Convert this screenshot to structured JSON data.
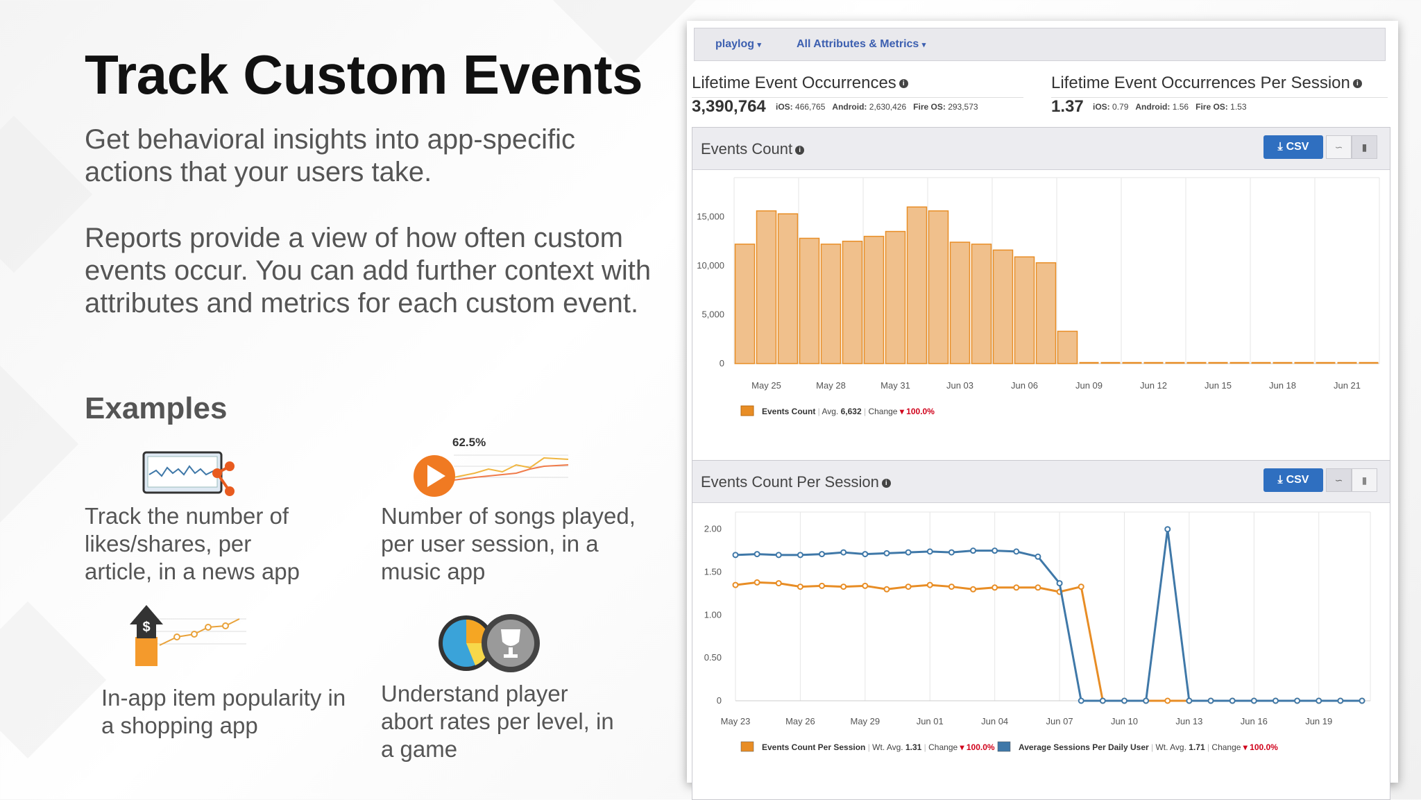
{
  "slide": {
    "title": "Track Custom Events",
    "para1": "Get behavioral insights into app-specific actions that your users take.",
    "para2": "Reports provide a view of how often custom events occur. You can add further context with attributes and metrics for each custom event.",
    "examples_heading": "Examples",
    "examples": [
      {
        "text": "Track the number of likes/shares, per article, in a news app",
        "icon": "news-chart-share-icon"
      },
      {
        "text": "Number of songs played, per user session, in a music app",
        "icon": "music-play-chart-icon",
        "icon_label": "62.5%"
      },
      {
        "text": "In-app item popularity in a shopping app",
        "icon": "dollar-arrow-chart-icon"
      },
      {
        "text": "Understand player abort rates per level, in a game",
        "icon": "pie-trophy-icon"
      }
    ]
  },
  "panel": {
    "nav": {
      "app": "playlog",
      "attributes": "All Attributes & Metrics"
    },
    "stats": [
      {
        "title": "Lifetime Event Occurrences",
        "big": "3,390,764",
        "breakdown": [
          {
            "k": "iOS:",
            "v": "466,765"
          },
          {
            "k": "Android:",
            "v": "2,630,426"
          },
          {
            "k": "Fire OS:",
            "v": "293,573"
          }
        ]
      },
      {
        "title": "Lifetime Event Occurrences Per Session",
        "big": "1.37",
        "breakdown": [
          {
            "k": "iOS:",
            "v": "0.79"
          },
          {
            "k": "Android:",
            "v": "1.56"
          },
          {
            "k": "Fire OS:",
            "v": "1.53"
          }
        ]
      }
    ],
    "csv_label": "CSV"
  },
  "colors": {
    "orange": "#e88d25",
    "orange_fill": "#f0c08c",
    "blue": "#3f78a8",
    "accent": "#2f6fc0",
    "red": "#d0021b"
  },
  "chart_data": [
    {
      "type": "bar",
      "title": "Events Count",
      "categories": [
        "May 24",
        "May 25",
        "May 26",
        "May 27",
        "May 28",
        "May 29",
        "May 30",
        "May 31",
        "Jun 01",
        "Jun 02",
        "Jun 03",
        "Jun 04",
        "Jun 05",
        "Jun 06",
        "Jun 07",
        "Jun 08",
        "Jun 09",
        "Jun 10",
        "Jun 11",
        "Jun 12",
        "Jun 13",
        "Jun 14",
        "Jun 15",
        "Jun 16",
        "Jun 17",
        "Jun 18",
        "Jun 19",
        "Jun 20",
        "Jun 21",
        "Jun 22"
      ],
      "values": [
        12200,
        15600,
        15300,
        12800,
        12200,
        12500,
        13000,
        13500,
        16000,
        15600,
        12400,
        12200,
        11600,
        10900,
        10300,
        3300,
        0,
        0,
        0,
        0,
        0,
        0,
        0,
        0,
        0,
        0,
        0,
        0,
        0,
        0
      ],
      "tick_labels": [
        "May 25",
        "May 28",
        "May 31",
        "Jun 03",
        "Jun 06",
        "Jun 09",
        "Jun 12",
        "Jun 15",
        "Jun 18",
        "Jun 21"
      ],
      "tick_start": 1,
      "tick_step": 3,
      "yticks": [
        "0",
        "5,000",
        "10,000",
        "15,000"
      ],
      "ylim": [
        0,
        19000
      ],
      "legend": [
        {
          "name": "Events Count",
          "avg_label": "Avg.",
          "avg": "6,632",
          "change_label": "Change",
          "change": "100.0%"
        }
      ]
    },
    {
      "type": "line",
      "title": "Events Count Per Session",
      "categories": [
        "May 23",
        "May 24",
        "May 25",
        "May 26",
        "May 27",
        "May 28",
        "May 29",
        "May 30",
        "May 31",
        "Jun 01",
        "Jun 02",
        "Jun 03",
        "Jun 04",
        "Jun 05",
        "Jun 06",
        "Jun 07",
        "Jun 08",
        "Jun 09",
        "Jun 10",
        "Jun 11",
        "Jun 12",
        "Jun 13",
        "Jun 14",
        "Jun 15",
        "Jun 16",
        "Jun 17",
        "Jun 18",
        "Jun 19",
        "Jun 20",
        "Jun 21"
      ],
      "tick_labels": [
        "May 23",
        "May 26",
        "May 29",
        "Jun 01",
        "Jun 04",
        "Jun 07",
        "Jun 10",
        "Jun 13",
        "Jun 16",
        "Jun 19"
      ],
      "tick_start": 0,
      "tick_step": 3,
      "yticks": [
        "0",
        "0.50",
        "1.00",
        "1.50",
        "2.00"
      ],
      "ylim": [
        0,
        2.2
      ],
      "series": [
        {
          "name": "Events Count Per Session",
          "color": "#e88d25",
          "values": [
            1.35,
            1.38,
            1.37,
            1.33,
            1.34,
            1.33,
            1.34,
            1.3,
            1.33,
            1.35,
            1.33,
            1.3,
            1.32,
            1.32,
            1.32,
            1.27,
            1.33,
            0,
            0,
            0,
            0,
            0,
            0,
            0,
            0,
            0,
            0,
            0,
            0,
            0
          ]
        },
        {
          "name": "Average Sessions Per Daily User",
          "color": "#3f78a8",
          "values": [
            1.7,
            1.71,
            1.7,
            1.7,
            1.71,
            1.73,
            1.71,
            1.72,
            1.73,
            1.74,
            1.73,
            1.75,
            1.75,
            1.74,
            1.68,
            1.37,
            0,
            0,
            0,
            0,
            2.0,
            0,
            0,
            0,
            0,
            0,
            0,
            0,
            0,
            0
          ]
        }
      ],
      "legend": [
        {
          "name": "Events Count Per Session",
          "avg_label": "Wt. Avg.",
          "avg": "1.31",
          "change_label": "Change",
          "change": "100.0%",
          "color": "#e88d25"
        },
        {
          "name": "Average Sessions Per Daily User",
          "avg_label": "Wt. Avg.",
          "avg": "1.71",
          "change_label": "Change",
          "change": "100.0%",
          "color": "#3f78a8"
        }
      ]
    }
  ]
}
